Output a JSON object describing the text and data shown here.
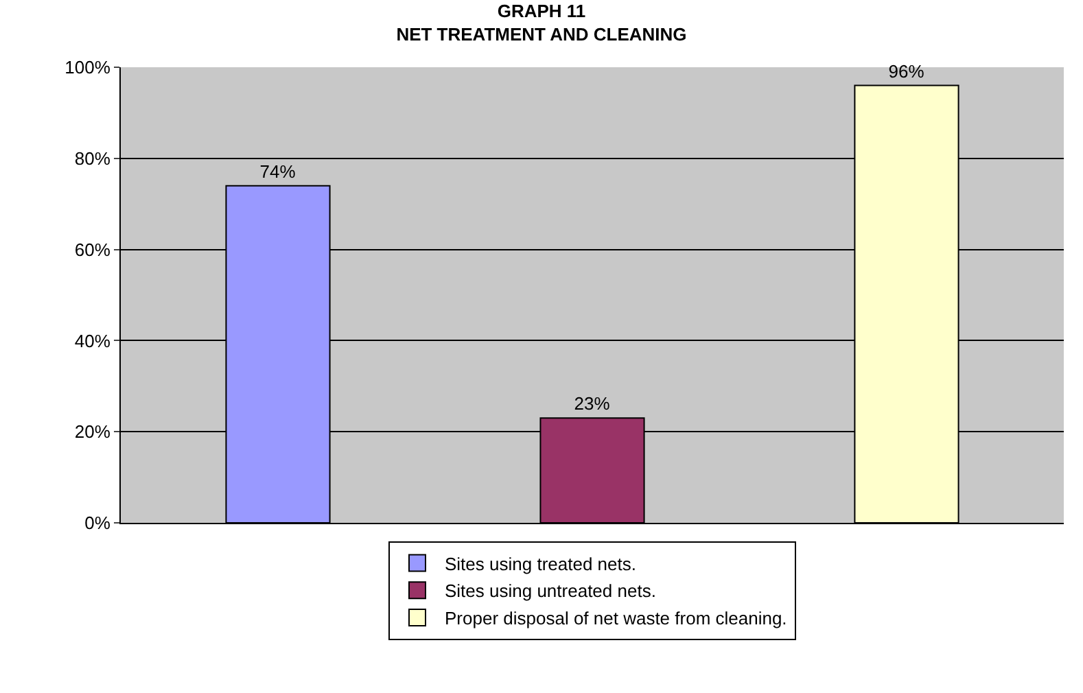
{
  "chart_data": {
    "type": "bar",
    "title": "GRAPH 11\nNET TREATMENT AND CLEANING",
    "categories": [
      null,
      null,
      null
    ],
    "series": [
      {
        "name": "Sites using treated nets.",
        "color": "#9999ff",
        "values": [
          74,
          null,
          null
        ],
        "value_labels": [
          "74%",
          null,
          null
        ]
      },
      {
        "name": "Sites using untreated nets.",
        "color": "#993366",
        "values": [
          null,
          23,
          null
        ],
        "value_labels": [
          null,
          "23%",
          null
        ]
      },
      {
        "name": "Proper disposal of net waste from cleaning.",
        "color": "#ffffcc",
        "values": [
          null,
          null,
          96
        ],
        "value_labels": [
          null,
          null,
          "96%"
        ]
      }
    ],
    "ylim": [
      0,
      100
    ],
    "yticks": [
      {
        "value": 0,
        "label": "0%"
      },
      {
        "value": 20,
        "label": "20%"
      },
      {
        "value": 40,
        "label": "40%"
      },
      {
        "value": 60,
        "label": "60%"
      },
      {
        "value": 80,
        "label": "80%"
      },
      {
        "value": 100,
        "label": "100%"
      }
    ],
    "grid": "y",
    "legend": "bottom"
  }
}
